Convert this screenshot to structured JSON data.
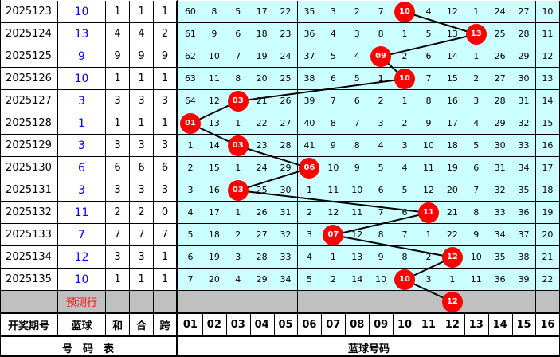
{
  "rows": [
    {
      "period": "2025123",
      "blue": "10",
      "he": "1",
      "hezhi": "1",
      "kua": "1",
      "cells": [
        "60",
        "8",
        "5",
        "17",
        "22",
        "35",
        "3",
        "2",
        "7",
        "10",
        "4",
        "12",
        "1",
        "24",
        "27",
        "10"
      ],
      "hit": 10
    },
    {
      "period": "2025124",
      "blue": "13",
      "he": "4",
      "hezhi": "4",
      "kua": "2",
      "cells": [
        "61",
        "9",
        "6",
        "18",
        "23",
        "36",
        "4",
        "3",
        "8",
        "1",
        "5",
        "13",
        "13",
        "25",
        "28",
        "11"
      ],
      "hit": 13
    },
    {
      "period": "2025125",
      "blue": "9",
      "he": "9",
      "hezhi": "9",
      "kua": "9",
      "cells": [
        "62",
        "10",
        "7",
        "19",
        "24",
        "37",
        "5",
        "4",
        "09",
        "2",
        "6",
        "14",
        "1",
        "26",
        "29",
        "12"
      ],
      "hit": 9
    },
    {
      "period": "2025126",
      "blue": "10",
      "he": "1",
      "hezhi": "1",
      "kua": "1",
      "cells": [
        "63",
        "11",
        "8",
        "20",
        "25",
        "38",
        "6",
        "5",
        "1",
        "10",
        "7",
        "15",
        "2",
        "27",
        "30",
        "13"
      ],
      "hit": 10
    },
    {
      "period": "2025127",
      "blue": "3",
      "he": "3",
      "hezhi": "3",
      "kua": "3",
      "cells": [
        "64",
        "12",
        "03",
        "21",
        "26",
        "39",
        "7",
        "6",
        "2",
        "1",
        "8",
        "16",
        "3",
        "28",
        "31",
        "14"
      ],
      "hit": 3
    },
    {
      "period": "2025128",
      "blue": "1",
      "he": "1",
      "hezhi": "1",
      "kua": "1",
      "cells": [
        "01",
        "13",
        "1",
        "22",
        "27",
        "40",
        "8",
        "7",
        "3",
        "2",
        "9",
        "17",
        "4",
        "29",
        "32",
        "15"
      ],
      "hit": 1
    },
    {
      "period": "2025129",
      "blue": "3",
      "he": "3",
      "hezhi": "3",
      "kua": "3",
      "cells": [
        "1",
        "14",
        "03",
        "23",
        "28",
        "41",
        "9",
        "8",
        "4",
        "3",
        "10",
        "18",
        "5",
        "30",
        "33",
        "16"
      ],
      "hit": 3
    },
    {
      "period": "2025130",
      "blue": "6",
      "he": "6",
      "hezhi": "6",
      "kua": "6",
      "cells": [
        "2",
        "15",
        "1",
        "24",
        "29",
        "06",
        "10",
        "9",
        "5",
        "4",
        "11",
        "19",
        "6",
        "31",
        "34",
        "17"
      ],
      "hit": 6
    },
    {
      "period": "2025131",
      "blue": "3",
      "he": "3",
      "hezhi": "3",
      "kua": "3",
      "cells": [
        "3",
        "16",
        "03",
        "25",
        "30",
        "1",
        "11",
        "10",
        "6",
        "5",
        "12",
        "20",
        "7",
        "32",
        "35",
        "18"
      ],
      "hit": 3
    },
    {
      "period": "2025132",
      "blue": "11",
      "he": "2",
      "hezhi": "2",
      "kua": "0",
      "cells": [
        "4",
        "17",
        "1",
        "26",
        "31",
        "2",
        "12",
        "11",
        "7",
        "6",
        "11",
        "21",
        "8",
        "33",
        "36",
        "19"
      ],
      "hit": 11
    },
    {
      "period": "2025133",
      "blue": "7",
      "he": "7",
      "hezhi": "7",
      "kua": "7",
      "cells": [
        "5",
        "18",
        "2",
        "27",
        "32",
        "3",
        "07",
        "12",
        "8",
        "7",
        "1",
        "22",
        "9",
        "34",
        "37",
        "20"
      ],
      "hit": 7
    },
    {
      "period": "2025134",
      "blue": "12",
      "he": "3",
      "hezhi": "3",
      "kua": "1",
      "cells": [
        "6",
        "19",
        "3",
        "28",
        "33",
        "4",
        "1",
        "13",
        "9",
        "8",
        "2",
        "12",
        "10",
        "35",
        "38",
        "21"
      ],
      "hit": 12
    },
    {
      "period": "2025135",
      "blue": "10",
      "he": "1",
      "hezhi": "1",
      "kua": "1",
      "cells": [
        "7",
        "20",
        "4",
        "29",
        "34",
        "5",
        "2",
        "14",
        "10",
        "10",
        "3",
        "1",
        "11",
        "36",
        "39",
        "22"
      ],
      "hit": 10
    }
  ],
  "prediction": {
    "label": "预测行",
    "ball": "12",
    "hit": 12
  },
  "header": {
    "period": "开奖期号",
    "blue": "蓝球",
    "he": "和",
    "hezhi": "合",
    "kua": "跨",
    "numbers": [
      "01",
      "02",
      "03",
      "04",
      "05",
      "06",
      "07",
      "08",
      "09",
      "10",
      "11",
      "12",
      "13",
      "14",
      "15",
      "16"
    ]
  },
  "footer": {
    "left": "号　码　表",
    "right": "蓝球号码"
  },
  "colors": {
    "grid_bg": "#ccffff",
    "ball": "#ff0000",
    "blue_text": "#0000ff",
    "pred_bg": "#c0c0c0",
    "pred_text": "#ff0000"
  }
}
